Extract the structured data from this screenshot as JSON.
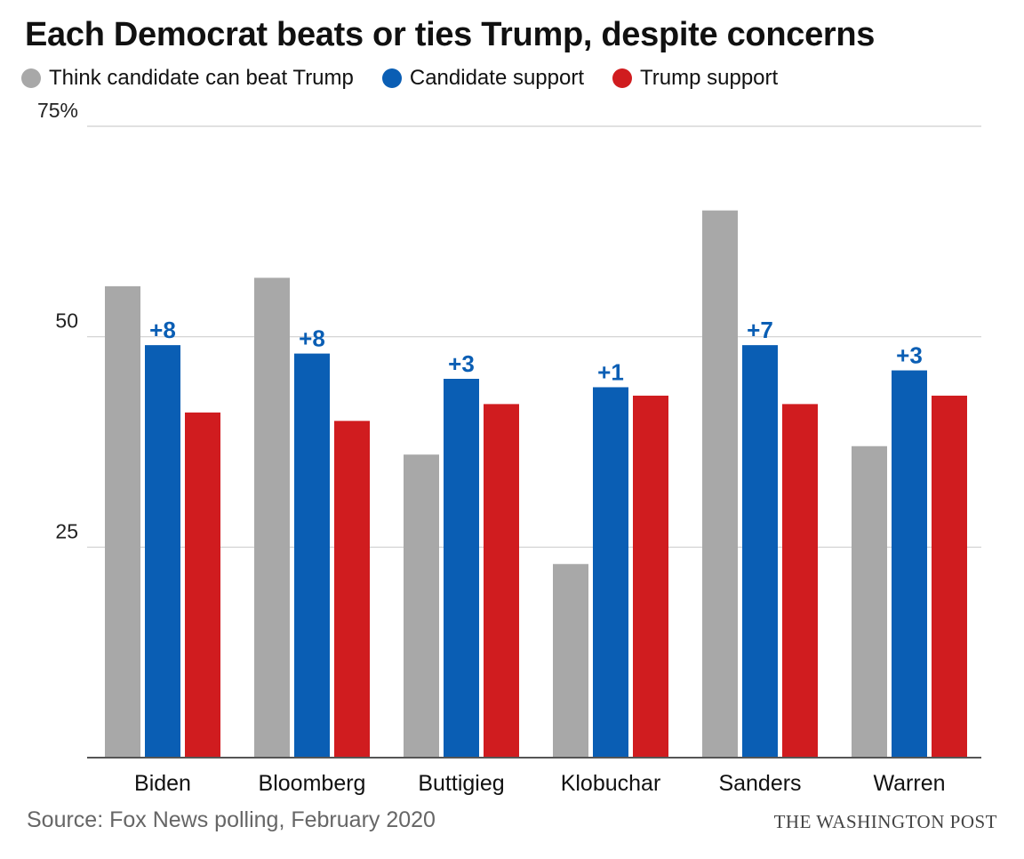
{
  "title": "Each Democrat beats or ties Trump, despite concerns",
  "legend": [
    {
      "label": "Think candidate can beat Trump",
      "color": "#a8a8a8"
    },
    {
      "label": "Candidate support",
      "color": "#0a5eb4"
    },
    {
      "label": "Trump support",
      "color": "#d01c1f"
    }
  ],
  "source": "Source: Fox News polling, February 2020",
  "credit": "THE WASHINGTON POST",
  "chart_data": {
    "type": "bar",
    "categories": [
      "Biden",
      "Bloomberg",
      "Buttigieg",
      "Klobuchar",
      "Sanders",
      "Warren"
    ],
    "series": [
      {
        "name": "Think candidate can beat Trump",
        "color": "#a8a8a8",
        "values": [
          56,
          57,
          36,
          23,
          65,
          37
        ]
      },
      {
        "name": "Candidate support",
        "color": "#0a5eb4",
        "values": [
          49,
          48,
          45,
          44,
          49,
          46
        ]
      },
      {
        "name": "Trump support",
        "color": "#d01c1f",
        "values": [
          41,
          40,
          42,
          43,
          42,
          43
        ]
      }
    ],
    "margin_labels": [
      "+8",
      "+8",
      "+3",
      "+1",
      "+7",
      "+3"
    ],
    "ylim": [
      0,
      75
    ],
    "yticks": [
      25,
      50,
      75
    ],
    "ytick_labels": [
      "25",
      "50",
      "75%"
    ],
    "grid": true,
    "legend_position": "top-left"
  }
}
